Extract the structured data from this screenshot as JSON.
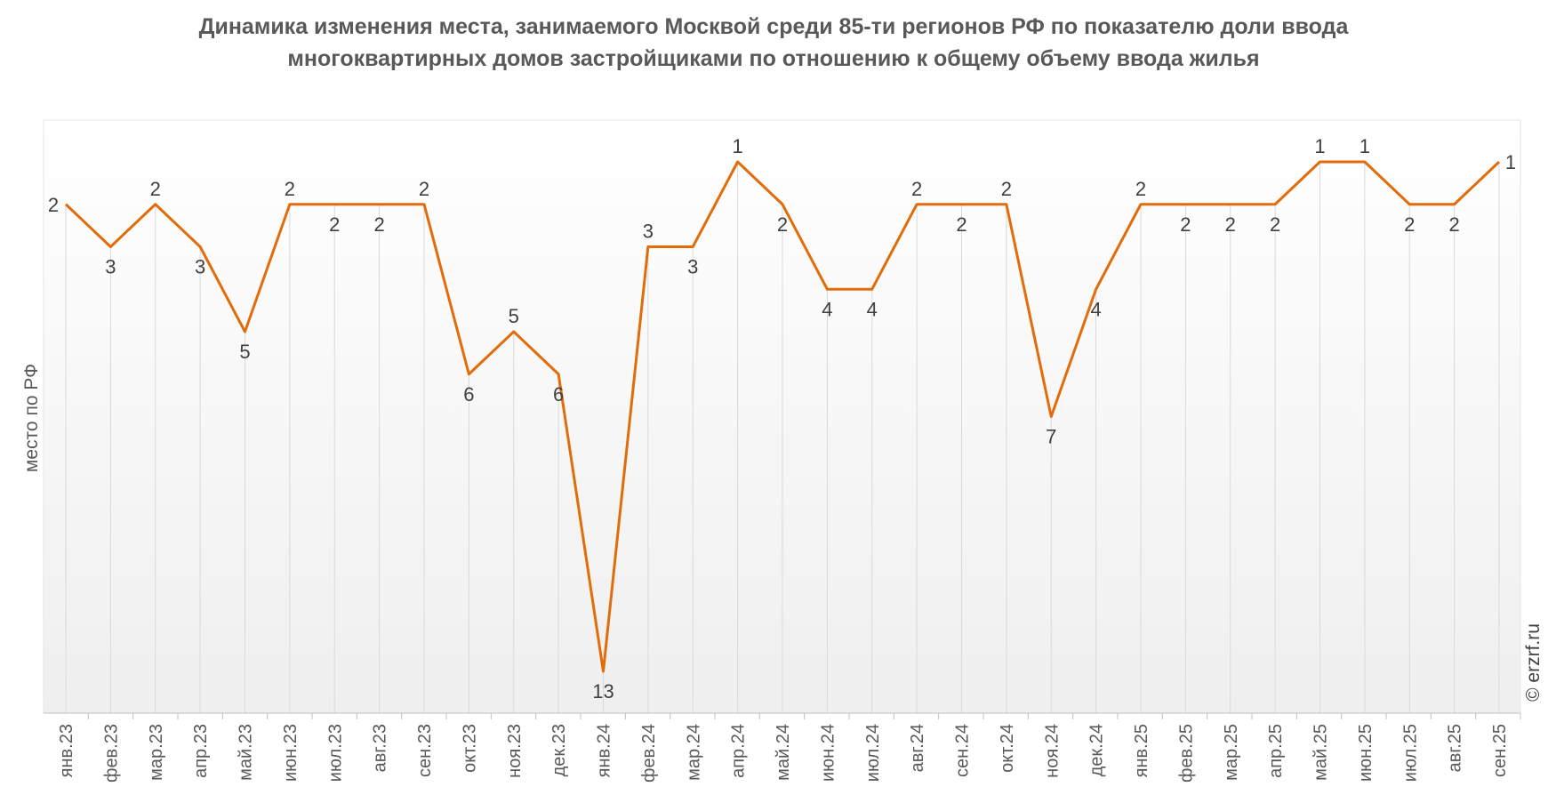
{
  "chart_data": {
    "type": "line",
    "title": "Динамика изменения места, занимаемого Москвой среди 85-ти регионов РФ по показателю доли ввода многоквартирных домов застройщиками по отношению к общему объему ввода жилья",
    "xlabel": "",
    "ylabel": "место по РФ",
    "y_inverted": true,
    "ylim": [
      13,
      1
    ],
    "grid": "vertical",
    "line_color": "#E36C0A",
    "categories": [
      "янв.23",
      "фев.23",
      "мар.23",
      "апр.23",
      "май.23",
      "июн.23",
      "июл.23",
      "авг.23",
      "сен.23",
      "окт.23",
      "ноя.23",
      "дек.23",
      "янв.24",
      "фев.24",
      "мар.24",
      "апр.24",
      "май.24",
      "июн.24",
      "июл.24",
      "авг.24",
      "сен.24",
      "окт.24",
      "ноя.24",
      "дек.24",
      "янв.25",
      "фев.25",
      "мар.25",
      "апр.25",
      "май.25",
      "июн.25",
      "июл.25",
      "авг.25",
      "сен.25"
    ],
    "values": [
      2,
      3,
      2,
      3,
      5,
      2,
      2,
      2,
      2,
      6,
      5,
      6,
      13,
      3,
      3,
      1,
      2,
      4,
      4,
      2,
      2,
      2,
      7,
      4,
      2,
      2,
      2,
      2,
      1,
      1,
      2,
      2,
      1
    ]
  },
  "credit": "© erzrf.ru"
}
